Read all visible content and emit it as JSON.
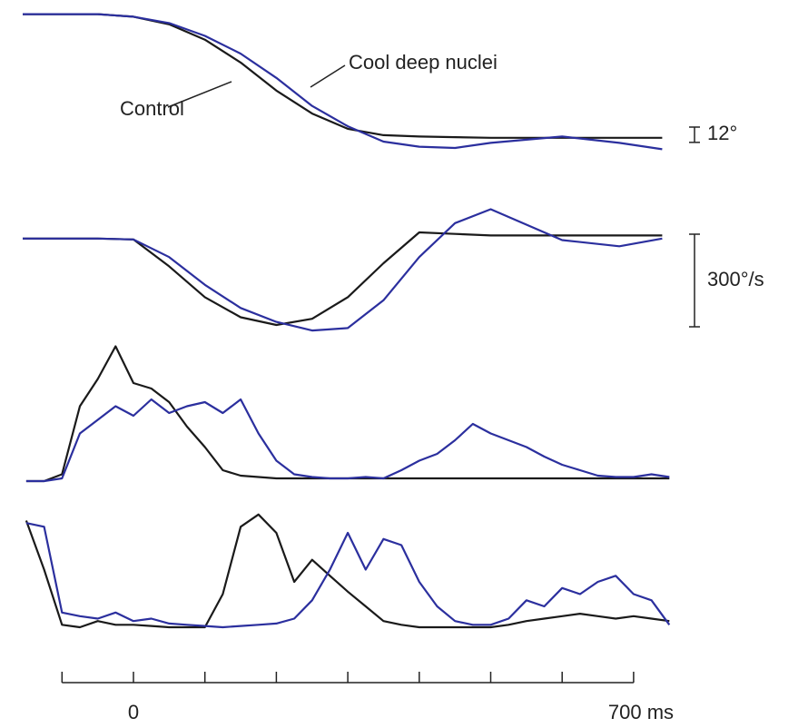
{
  "chart_data": [
    {
      "type": "line",
      "xlim": [
        -155,
        750
      ],
      "ylim": [
        -110,
        4
      ],
      "x": [
        -155,
        -50,
        0,
        50,
        100,
        150,
        200,
        250,
        300,
        350,
        400,
        450,
        500,
        600,
        680,
        740
      ],
      "series": [
        {
          "name": "Control",
          "color": "#1a1a1a",
          "values": [
            0,
            0,
            -2,
            -8,
            -20,
            -38,
            -60,
            -78,
            -90,
            -95,
            -96,
            -96.5,
            -97,
            -97,
            -97,
            -97
          ]
        },
        {
          "name": "Cool deep nuclei",
          "color": "#2b2f9e",
          "values": [
            0,
            0,
            -2,
            -7,
            -17,
            -31,
            -50,
            -72,
            -88,
            -100,
            -104,
            -105,
            -101,
            -96,
            -101,
            -106
          ]
        }
      ],
      "scale_bar": {
        "value": 12,
        "label": "12°"
      }
    },
    {
      "type": "line",
      "xlim": [
        -155,
        750
      ],
      "ylim": [
        -330,
        120
      ],
      "x": [
        -155,
        -50,
        0,
        50,
        100,
        150,
        200,
        250,
        300,
        350,
        400,
        450,
        500,
        600,
        680,
        740
      ],
      "series": [
        {
          "color": "#1a1a1a",
          "values": [
            0,
            0,
            -3,
            -90,
            -190,
            -255,
            -280,
            -260,
            -190,
            -80,
            20,
            15,
            10,
            10,
            10,
            10
          ]
        },
        {
          "color": "#2b2f9e",
          "values": [
            0,
            0,
            -3,
            -60,
            -150,
            -225,
            -270,
            -298,
            -290,
            -200,
            -60,
            50,
            95,
            -5,
            -25,
            0
          ]
        }
      ],
      "scale_bar": {
        "value": 300,
        "label": "300°/s"
      }
    },
    {
      "type": "line",
      "xlim": [
        -155,
        750
      ],
      "ylim": [
        0,
        100
      ],
      "x": [
        -150,
        -125,
        -100,
        -75,
        -50,
        -25,
        0,
        25,
        50,
        75,
        100,
        125,
        150,
        175,
        200,
        225,
        250,
        275,
        300,
        325,
        350,
        375,
        400,
        425,
        450,
        475,
        500,
        525,
        550,
        575,
        600,
        625,
        650,
        675,
        700,
        725,
        750
      ],
      "series": [
        {
          "color": "#1a1a1a",
          "values": [
            0,
            0,
            5,
            55,
            75,
            99,
            72,
            68,
            58,
            40,
            25,
            8,
            4,
            3,
            2,
            2,
            2,
            2,
            2,
            2,
            2,
            2,
            2,
            2,
            2,
            2,
            2,
            2,
            2,
            2,
            2,
            2,
            2,
            2,
            2,
            2,
            2
          ]
        },
        {
          "color": "#2b2f9e",
          "values": [
            0,
            0,
            2,
            35,
            45,
            55,
            48,
            60,
            50,
            55,
            58,
            50,
            60,
            35,
            15,
            5,
            3,
            2,
            2,
            3,
            2,
            8,
            15,
            20,
            30,
            42,
            35,
            30,
            25,
            18,
            12,
            8,
            4,
            3,
            3,
            5,
            3
          ]
        }
      ]
    },
    {
      "type": "line",
      "xlim": [
        -155,
        750
      ],
      "ylim": [
        0,
        100
      ],
      "x": [
        -150,
        -125,
        -100,
        -75,
        -50,
        -25,
        0,
        25,
        50,
        75,
        100,
        125,
        150,
        175,
        200,
        225,
        250,
        275,
        300,
        325,
        350,
        375,
        400,
        425,
        450,
        475,
        500,
        525,
        550,
        575,
        600,
        625,
        650,
        675,
        700,
        725,
        750
      ],
      "series": [
        {
          "color": "#1a1a1a",
          "values": [
            90,
            50,
            5,
            3,
            8,
            5,
            5,
            4,
            3,
            3,
            3,
            30,
            85,
            95,
            80,
            40,
            58,
            45,
            32,
            20,
            8,
            5,
            3,
            3,
            3,
            3,
            3,
            5,
            8,
            10,
            12,
            14,
            12,
            10,
            12,
            10,
            8
          ]
        },
        {
          "color": "#2b2f9e",
          "values": [
            88,
            85,
            15,
            12,
            10,
            15,
            8,
            10,
            6,
            5,
            4,
            3,
            4,
            5,
            6,
            10,
            25,
            50,
            80,
            50,
            75,
            70,
            40,
            20,
            8,
            5,
            5,
            10,
            25,
            20,
            35,
            30,
            40,
            45,
            30,
            25,
            5
          ]
        }
      ],
      "xticks": [
        {
          "value": -100,
          "label": null
        },
        0,
        {
          "value": 100,
          "label": null
        },
        {
          "value": 200,
          "label": null
        },
        {
          "value": 300,
          "label": null
        },
        {
          "value": 400,
          "label": null
        },
        {
          "value": 500,
          "label": null
        },
        {
          "value": 600,
          "label": null
        },
        {
          "value": 700,
          "label": "700 ms"
        }
      ]
    }
  ]
}
